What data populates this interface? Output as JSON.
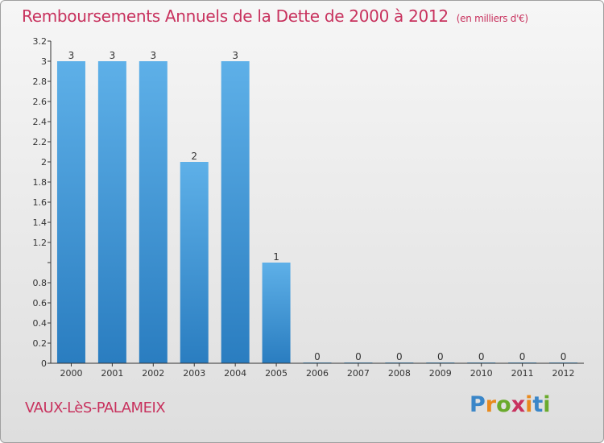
{
  "header": {
    "title": "Remboursements Annuels de la Dette de 2000 à 2012",
    "unit": "(en milliers d'€)"
  },
  "footer": {
    "commune": "VAUX-LèS-PALAMEIX",
    "brand_letters": [
      "P",
      "r",
      "o",
      "x",
      "i",
      "t",
      "i"
    ]
  },
  "colors": {
    "title": "#c8325e",
    "bar_top": "#5eb0e8",
    "bar_bottom": "#2a7dc0",
    "brand": [
      "#3a86c8",
      "#e98a1e",
      "#6aaa2c",
      "#c8325e",
      "#e98a1e",
      "#3a86c8",
      "#6aaa2c"
    ]
  },
  "chart_data": {
    "type": "bar",
    "title": "Remboursements Annuels de la Dette de 2000 à 2012",
    "xlabel": "",
    "ylabel": "",
    "categories": [
      "2000",
      "2001",
      "2002",
      "2003",
      "2004",
      "2005",
      "2006",
      "2007",
      "2008",
      "2009",
      "2010",
      "2011",
      "2012"
    ],
    "values": [
      3,
      3,
      3,
      2,
      3,
      1,
      0,
      0,
      0,
      0,
      0,
      0,
      0
    ],
    "value_labels": [
      "3",
      "3",
      "3",
      "2",
      "3",
      "1",
      "0",
      "0",
      "0",
      "0",
      "0",
      "0",
      "0"
    ],
    "ylim": [
      0,
      3.2
    ],
    "y_ticks": [
      0,
      0.2,
      0.4,
      0.6,
      0.8,
      1,
      1.2,
      1.4,
      1.6,
      1.8,
      2,
      2.2,
      2.4,
      2.6,
      2.8,
      3,
      3.2
    ],
    "y_tick_labels": [
      "0",
      "0.2",
      "0.4",
      "0.6",
      "0.8",
      "",
      "1.2",
      "1.4",
      "1.6",
      "1.8",
      "2",
      "2.2",
      "2.4",
      "2.6",
      "2.8",
      "3",
      "3.2"
    ],
    "grid": false
  }
}
